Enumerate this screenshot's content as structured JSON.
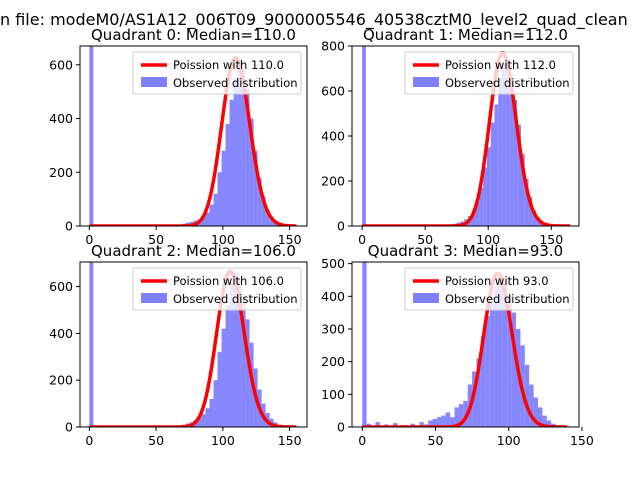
{
  "suptitle": "n file: modeM0/AS1A12_006T09_9000005546_40538cztM0_level2_quad_clean",
  "colors": {
    "poisson": "#ff0000",
    "observed": "#8080ff",
    "observed_edge": "#7070f0"
  },
  "chart_data": [
    {
      "type": "bar",
      "title": "Quadrant 0: Median=110.0",
      "median": 110.0,
      "legend": {
        "placement": "upper right",
        "entries": [
          "Poission with 110.0",
          "Observed distribution"
        ]
      },
      "xlim": [
        -7,
        163
      ],
      "ylim": [
        0,
        670
      ],
      "xticks": [
        0,
        50,
        100,
        150
      ],
      "yticks": [
        0,
        200,
        400,
        600
      ],
      "series": [
        {
          "kind": "hist",
          "name": "Observed distribution",
          "bin_width": 3,
          "bins": [
            [
              0,
              670
            ],
            [
              60,
              2
            ],
            [
              63,
              3
            ],
            [
              66,
              5
            ],
            [
              69,
              8
            ],
            [
              72,
              12
            ],
            [
              75,
              15
            ],
            [
              78,
              20
            ],
            [
              81,
              25
            ],
            [
              84,
              35
            ],
            [
              87,
              50
            ],
            [
              90,
              80
            ],
            [
              93,
              120
            ],
            [
              96,
              200
            ],
            [
              99,
              280
            ],
            [
              102,
              380
            ],
            [
              105,
              470
            ],
            [
              108,
              550
            ],
            [
              111,
              620
            ],
            [
              114,
              580
            ],
            [
              117,
              510
            ],
            [
              120,
              400
            ],
            [
              123,
              280
            ],
            [
              126,
              180
            ],
            [
              129,
              110
            ],
            [
              132,
              60
            ],
            [
              135,
              35
            ],
            [
              138,
              20
            ],
            [
              141,
              10
            ],
            [
              144,
              5
            ],
            [
              147,
              2
            ]
          ]
        },
        {
          "kind": "line",
          "name": "Poission with 110.0",
          "lambda": 110.0,
          "scale": 625,
          "x_range": [
            0,
            155
          ]
        }
      ]
    },
    {
      "type": "bar",
      "title": "Quadrant 1: Median=112.0",
      "median": 112.0,
      "legend": {
        "placement": "upper right",
        "entries": [
          "Poission with 112.0",
          "Observed distribution"
        ]
      },
      "xlim": [
        -8,
        172
      ],
      "ylim": [
        0,
        800
      ],
      "xticks": [
        0,
        50,
        100,
        150
      ],
      "yticks": [
        0,
        200,
        400,
        600,
        800
      ],
      "series": [
        {
          "kind": "hist",
          "name": "Observed distribution",
          "bin_width": 3,
          "bins": [
            [
              0,
              800
            ],
            [
              60,
              3
            ],
            [
              66,
              5
            ],
            [
              72,
              10
            ],
            [
              75,
              15
            ],
            [
              78,
              20
            ],
            [
              81,
              30
            ],
            [
              84,
              45
            ],
            [
              87,
              70
            ],
            [
              90,
              110
            ],
            [
              93,
              170
            ],
            [
              96,
              260
            ],
            [
              99,
              350
            ],
            [
              102,
              460
            ],
            [
              105,
              540
            ],
            [
              108,
              660
            ],
            [
              111,
              720
            ],
            [
              114,
              710
            ],
            [
              117,
              630
            ],
            [
              120,
              560
            ],
            [
              123,
              450
            ],
            [
              126,
              320
            ],
            [
              129,
              210
            ],
            [
              132,
              130
            ],
            [
              135,
              70
            ],
            [
              138,
              40
            ],
            [
              141,
              20
            ],
            [
              144,
              10
            ],
            [
              147,
              5
            ],
            [
              150,
              2
            ]
          ]
        },
        {
          "kind": "line",
          "name": "Poission with 112.0",
          "lambda": 112.0,
          "scale": 770,
          "x_range": [
            0,
            165
          ]
        }
      ]
    },
    {
      "type": "bar",
      "title": "Quadrant 2: Median=106.0",
      "median": 106.0,
      "legend": {
        "placement": "upper right",
        "entries": [
          "Poission with 106.0",
          "Observed distribution"
        ]
      },
      "xlim": [
        -7,
        163
      ],
      "ylim": [
        0,
        705
      ],
      "xticks": [
        0,
        50,
        100,
        150
      ],
      "yticks": [
        0,
        200,
        400,
        600
      ],
      "series": [
        {
          "kind": "hist",
          "name": "Observed distribution",
          "bin_width": 3,
          "bins": [
            [
              0,
              705
            ],
            [
              60,
              3
            ],
            [
              66,
              6
            ],
            [
              69,
              10
            ],
            [
              72,
              15
            ],
            [
              75,
              20
            ],
            [
              78,
              30
            ],
            [
              81,
              40
            ],
            [
              84,
              55
            ],
            [
              87,
              80
            ],
            [
              90,
              120
            ],
            [
              93,
              200
            ],
            [
              96,
              320
            ],
            [
              99,
              420
            ],
            [
              102,
              520
            ],
            [
              105,
              620
            ],
            [
              108,
              660
            ],
            [
              111,
              630
            ],
            [
              114,
              560
            ],
            [
              117,
              460
            ],
            [
              120,
              360
            ],
            [
              123,
              250
            ],
            [
              126,
              160
            ],
            [
              129,
              100
            ],
            [
              132,
              60
            ],
            [
              135,
              35
            ],
            [
              138,
              20
            ],
            [
              141,
              10
            ],
            [
              144,
              5
            ]
          ]
        },
        {
          "kind": "line",
          "name": "Poission with 106.0",
          "lambda": 106.0,
          "scale": 665,
          "x_range": [
            0,
            155
          ]
        }
      ]
    },
    {
      "type": "bar",
      "title": "Quadrant 3: Median=93.0",
      "median": 93.0,
      "legend": {
        "placement": "upper right",
        "entries": [
          "Poission with 93.0",
          "Observed distribution"
        ]
      },
      "xlim": [
        -7,
        148
      ],
      "ylim": [
        0,
        505
      ],
      "xticks": [
        0,
        50,
        100,
        150
      ],
      "yticks": [
        0,
        100,
        200,
        300,
        400,
        500
      ],
      "series": [
        {
          "kind": "hist",
          "name": "Observed distribution",
          "bin_width": 3,
          "bins": [
            [
              0,
              505
            ],
            [
              3,
              10
            ],
            [
              9,
              15
            ],
            [
              15,
              8
            ],
            [
              21,
              12
            ],
            [
              27,
              6
            ],
            [
              33,
              10
            ],
            [
              39,
              15
            ],
            [
              42,
              8
            ],
            [
              45,
              20
            ],
            [
              48,
              25
            ],
            [
              51,
              30
            ],
            [
              54,
              35
            ],
            [
              57,
              45
            ],
            [
              60,
              30
            ],
            [
              63,
              60
            ],
            [
              66,
              70
            ],
            [
              69,
              80
            ],
            [
              72,
              130
            ],
            [
              75,
              170
            ],
            [
              78,
              210
            ],
            [
              81,
              280
            ],
            [
              84,
              340
            ],
            [
              87,
              380
            ],
            [
              90,
              430
            ],
            [
              93,
              470
            ],
            [
              96,
              440
            ],
            [
              99,
              400
            ],
            [
              102,
              350
            ],
            [
              105,
              300
            ],
            [
              108,
              250
            ],
            [
              111,
              190
            ],
            [
              114,
              130
            ],
            [
              117,
              90
            ],
            [
              120,
              60
            ],
            [
              123,
              35
            ],
            [
              126,
              20
            ],
            [
              129,
              10
            ]
          ]
        },
        {
          "kind": "line",
          "name": "Poission with 93.0",
          "lambda": 93.0,
          "scale": 470,
          "x_range": [
            0,
            140
          ]
        }
      ]
    }
  ]
}
